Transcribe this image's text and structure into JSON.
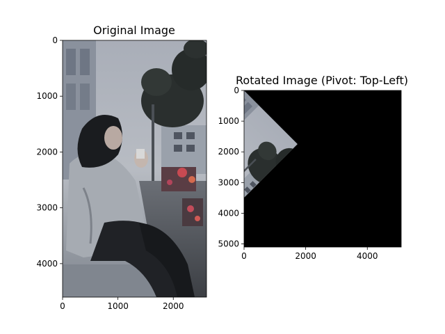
{
  "figure": {
    "background": "#ffffff"
  },
  "chart_data": [
    {
      "type": "image",
      "title": "Original Image",
      "xlabel": "",
      "ylabel": "",
      "image_width": 2600,
      "image_height": 4600,
      "xticks": [
        0,
        1000,
        2000
      ],
      "xtick_labels": [
        "0",
        "1000",
        "2000"
      ],
      "yticks": [
        0,
        1000,
        2000,
        3000,
        4000
      ],
      "ytick_labels": [
        "0",
        "1000",
        "2000",
        "3000",
        "4000"
      ],
      "grid": false,
      "content_description": "photograph of a woman in a black hijab and grey coat sitting on a street curb, trees and buildings behind"
    },
    {
      "type": "image",
      "title": "Rotated Image (Pivot: Top-Left)",
      "xlabel": "",
      "ylabel": "",
      "image_width": 5100,
      "image_height": 5100,
      "visible_region_vertices": [
        [
          0,
          0
        ],
        [
          1800,
          1800
        ],
        [
          0,
          3600
        ]
      ],
      "fill_color": "#000000",
      "xticks": [
        0,
        2000,
        4000
      ],
      "xtick_labels": [
        "0",
        "2000",
        "4000"
      ],
      "yticks": [
        0,
        1000,
        2000,
        3000,
        4000,
        5000
      ],
      "ytick_labels": [
        "0",
        "1000",
        "2000",
        "3000",
        "4000",
        "5000"
      ],
      "grid": false
    }
  ]
}
